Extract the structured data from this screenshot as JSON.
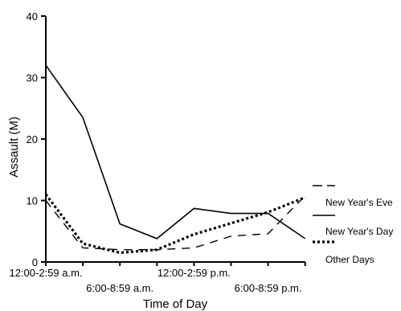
{
  "chart_data": {
    "type": "line",
    "title": "",
    "xlabel": "Time of Day",
    "ylabel": "Assault (M)",
    "ylim": [
      0,
      40
    ],
    "yticks": [
      "0",
      "10",
      "20",
      "30",
      "40"
    ],
    "x_tick_labels": [
      {
        "index": 0,
        "label": "12:00-2:59 a.m."
      },
      {
        "index": 2,
        "label": "6:00-8:59 a.m."
      },
      {
        "index": 4,
        "label": "12:00-2:59 p.m."
      },
      {
        "index": 6,
        "label": "6:00-8:59 p.m."
      }
    ],
    "x": [
      0,
      1,
      2,
      3,
      4,
      5,
      6,
      7
    ],
    "grid": false,
    "legend_position": "right",
    "series": [
      {
        "name": "New Year's Eve",
        "style": "dashed",
        "values": [
          10,
          2.3,
          2,
          2,
          2.3,
          4.2,
          4.6,
          10.8
        ]
      },
      {
        "name": "New Year's Day",
        "style": "solid",
        "values": [
          32,
          23.5,
          6.2,
          3.8,
          8.7,
          7.9,
          7.9,
          3.8
        ]
      },
      {
        "name": "Other Days",
        "style": "dotted",
        "values": [
          11,
          3,
          1.5,
          2,
          4.5,
          6.3,
          8.1,
          10.5
        ]
      }
    ]
  }
}
